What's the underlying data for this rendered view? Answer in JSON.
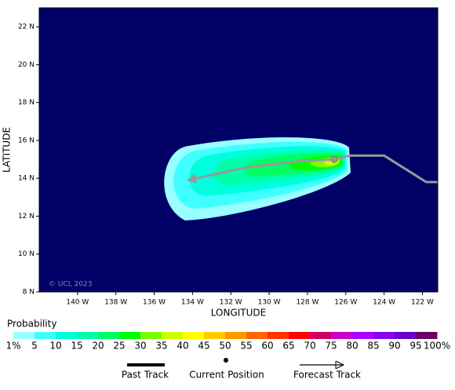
{
  "chart_data": {
    "type": "map",
    "xlabel": "LONGITUDE",
    "ylabel": "LATITUDE",
    "xlim": [
      -142,
      -121.2
    ],
    "ylim": [
      8,
      23
    ],
    "xticks": [
      {
        "value": -140,
        "label": "140 W"
      },
      {
        "value": -138,
        "label": "138 W"
      },
      {
        "value": -136,
        "label": "136 W"
      },
      {
        "value": -134,
        "label": "134 W"
      },
      {
        "value": -132,
        "label": "132 W"
      },
      {
        "value": -130,
        "label": "130 W"
      },
      {
        "value": -128,
        "label": "128 W"
      },
      {
        "value": -126,
        "label": "126 W"
      },
      {
        "value": -124,
        "label": "124 W"
      },
      {
        "value": -122,
        "label": "122 W"
      }
    ],
    "yticks": [
      {
        "value": 8,
        "label": "8 N"
      },
      {
        "value": 10,
        "label": "10 N"
      },
      {
        "value": 12,
        "label": "12 N"
      },
      {
        "value": 14,
        "label": "14 N"
      },
      {
        "value": 16,
        "label": "16 N"
      },
      {
        "value": 18,
        "label": "18 N"
      },
      {
        "value": 20,
        "label": "20 N"
      },
      {
        "value": 22,
        "label": "22 N"
      }
    ],
    "watermark": "© UCL 2023",
    "past_track": {
      "lon": [
        -121.2,
        -121.8,
        -124.0,
        -125.8,
        -126.6
      ],
      "lat": [
        13.8,
        13.8,
        15.2,
        15.2,
        15.0
      ],
      "color": "#999999"
    },
    "current_position": {
      "lon": -126.6,
      "lat": 15.0
    },
    "forecast_track": {
      "lon": [
        -126.6,
        -128.5,
        -131.1,
        -134.2
      ],
      "lat": [
        15.0,
        14.9,
        14.6,
        13.9
      ],
      "color": "#999999"
    },
    "legend": {
      "title": "Probability",
      "labels": [
        "1%",
        "5",
        "10",
        "15",
        "20",
        "25",
        "30",
        "35",
        "40",
        "45",
        "50",
        "55",
        "60",
        "65",
        "70",
        "75",
        "80",
        "85",
        "90",
        "95",
        "100%"
      ],
      "colors": [
        "#99ffff",
        "#40ffff",
        "#00ffdd",
        "#00ffaa",
        "#00ff66",
        "#00ff00",
        "#77ff00",
        "#ccff00",
        "#ffff00",
        "#ffcc00",
        "#ff9900",
        "#ff6600",
        "#ff3300",
        "#ff0000",
        "#cc0066",
        "#cc00cc",
        "#aa00ff",
        "#8800ee",
        "#6600cc",
        "#660066"
      ],
      "past_track": "Past Track",
      "current_position": "Current Position",
      "forecast_track": "Forecast Track"
    }
  }
}
